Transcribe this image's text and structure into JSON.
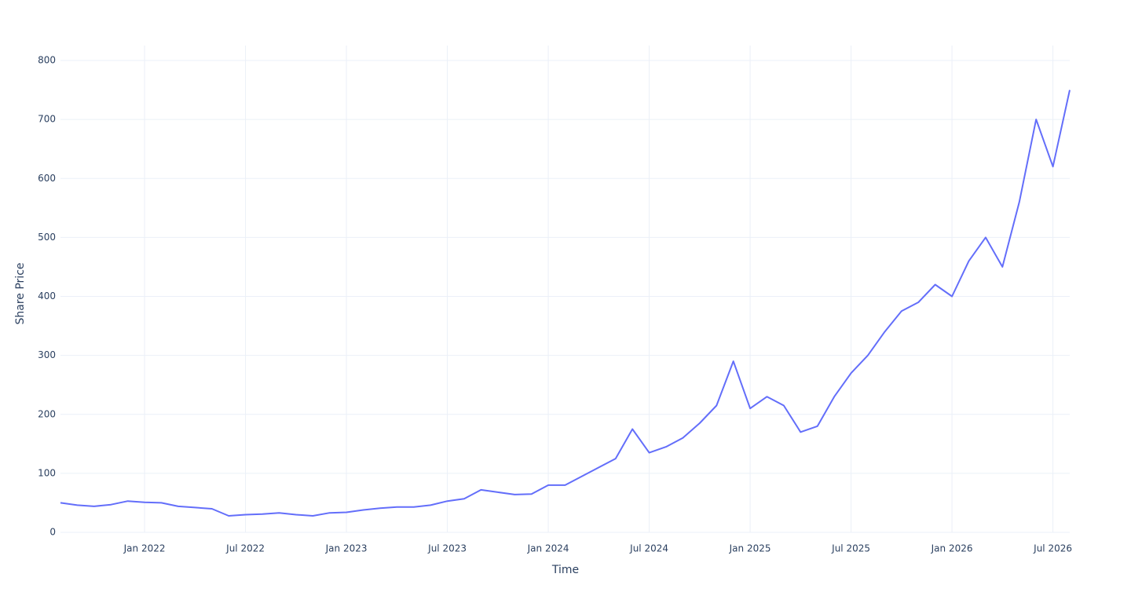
{
  "chart_data": {
    "type": "line",
    "x_label": "Time",
    "y_label": "Share Price",
    "x": [
      "2021-08",
      "2021-09",
      "2021-10",
      "2021-11",
      "2021-12",
      "2022-01",
      "2022-02",
      "2022-03",
      "2022-04",
      "2022-05",
      "2022-06",
      "2022-07",
      "2022-08",
      "2022-09",
      "2022-10",
      "2022-11",
      "2022-12",
      "2023-01",
      "2023-02",
      "2023-03",
      "2023-04",
      "2023-05",
      "2023-06",
      "2023-07",
      "2023-08",
      "2023-09",
      "2023-10",
      "2023-11",
      "2023-12",
      "2024-01",
      "2024-02",
      "2024-03",
      "2024-04",
      "2024-05",
      "2024-06",
      "2024-07",
      "2024-08",
      "2024-09",
      "2024-10",
      "2024-11",
      "2024-12",
      "2025-01",
      "2025-02",
      "2025-03",
      "2025-04",
      "2025-05",
      "2025-06",
      "2025-07",
      "2025-08",
      "2025-09",
      "2025-10",
      "2025-11",
      "2025-12",
      "2026-01",
      "2026-02",
      "2026-03",
      "2026-04",
      "2026-05",
      "2026-06",
      "2026-07",
      "2026-08"
    ],
    "series": [
      {
        "color": "#636efa",
        "values": [
          50,
          46,
          44,
          47,
          53,
          51,
          50,
          44,
          42,
          40,
          28,
          30,
          31,
          33,
          30,
          28,
          33,
          34,
          38,
          41,
          43,
          43,
          46,
          53,
          57,
          72,
          68,
          64,
          65,
          80,
          80,
          95,
          110,
          125,
          175,
          135,
          145,
          160,
          185,
          215,
          290,
          210,
          230,
          215,
          170,
          180,
          230,
          270,
          300,
          340,
          375,
          390,
          420,
          400,
          460,
          500,
          450,
          560,
          700,
          620,
          750
        ]
      }
    ],
    "xlim": [
      "2021-08",
      "2026-08"
    ],
    "xticks": [
      {
        "value": "2022-01",
        "label": "Jan 2022"
      },
      {
        "value": "2022-07",
        "label": "Jul 2022"
      },
      {
        "value": "2023-01",
        "label": "Jan 2023"
      },
      {
        "value": "2023-07",
        "label": "Jul 2023"
      },
      {
        "value": "2024-01",
        "label": "Jan 2024"
      },
      {
        "value": "2024-07",
        "label": "Jul 2024"
      },
      {
        "value": "2025-01",
        "label": "Jan 2025"
      },
      {
        "value": "2025-07",
        "label": "Jul 2025"
      },
      {
        "value": "2026-01",
        "label": "Jan 2026"
      },
      {
        "value": "2026-07",
        "label": "Jul 2026"
      }
    ],
    "ylim": [
      0,
      800
    ],
    "yticks": [
      0,
      100,
      200,
      300,
      400,
      500,
      600,
      700,
      800
    ],
    "grid": true
  }
}
